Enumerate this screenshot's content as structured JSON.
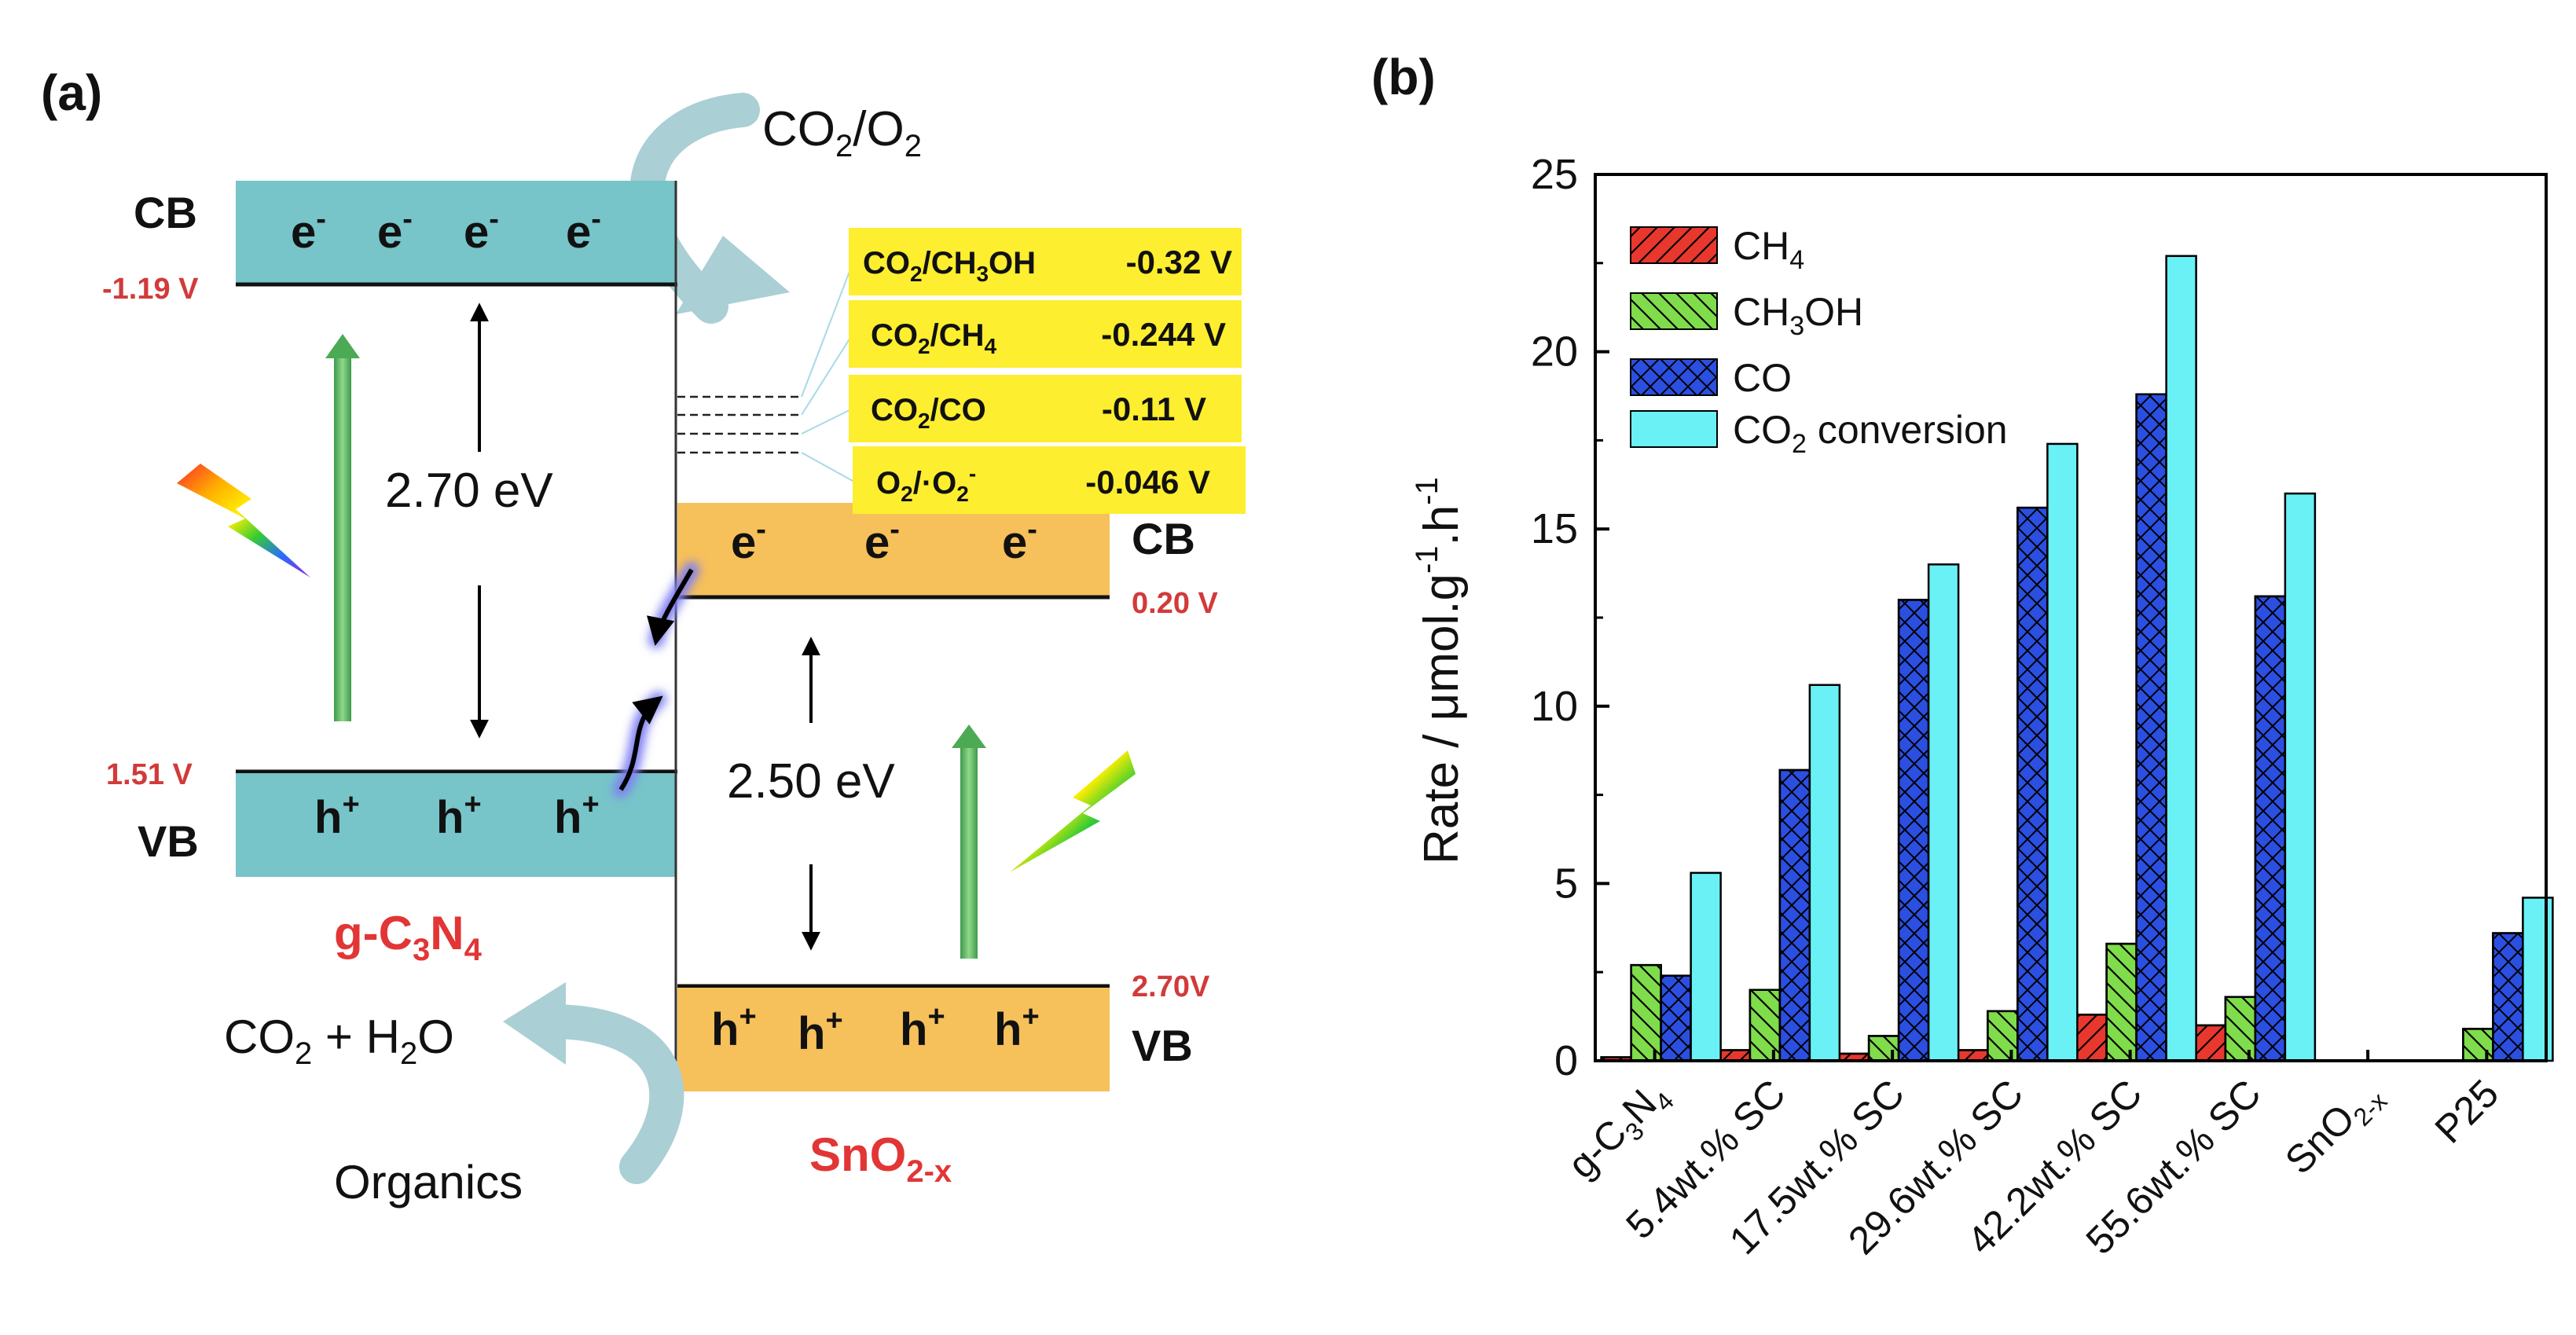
{
  "panel_a": {
    "label": "(a)",
    "top_gas": {
      "a": "CO",
      "b": "2",
      "c": "/O",
      "d": "2"
    },
    "cb": "CB",
    "vb": "VB",
    "electron": "e",
    "electron_charge": "-",
    "hole": "h",
    "hole_charge": "+",
    "gcn_cb_potential": "-1.19 V",
    "gcn_vb_potential": "1.51 V",
    "gcn_gap": "2.70 eV",
    "sno_cb_potential": "0.20 V",
    "sno_vb_potential": "2.70V",
    "sno_gap": "2.50 eV",
    "gcn_name": {
      "a": "g-C",
      "b": "3",
      "c": "N",
      "d": "4"
    },
    "sno_name": {
      "a": "SnO",
      "b": "2-x"
    },
    "products": {
      "a": "CO",
      "b": "2",
      "c": " + H",
      "d": "2",
      "e": "O"
    },
    "organics": "Organics",
    "redox": [
      {
        "pair": {
          "a": "CO",
          "b": "2",
          "c": "/CH",
          "d": "3",
          "e": "OH"
        },
        "value": "-0.32 V"
      },
      {
        "pair": {
          "a": "CO",
          "b": "2",
          "c": "/CH",
          "d": "4",
          "e": ""
        },
        "value": "-0.244 V"
      },
      {
        "pair": {
          "a": "CO",
          "b": "2",
          "c": "/CO",
          "d": "",
          "e": ""
        },
        "value": "-0.11 V"
      },
      {
        "pair": {
          "a": "O",
          "b": "2",
          "c": "/·O",
          "d": "2",
          "e": "",
          "sup": "-"
        },
        "value": "-0.046 V"
      }
    ],
    "colors": {
      "gcn": "#77c4c9",
      "sno": "#f6c05a",
      "redox": "#fdee2f",
      "arrow": "#5fae5a"
    }
  },
  "panel_b": {
    "label": "(b)",
    "ylabel": {
      "a": "Rate / μmol.g",
      "b": "-1",
      "c": ".h",
      "d": "-1"
    },
    "xtick_labels": [
      {
        "a": "g-C",
        "b": "3",
        "c": "N",
        "d": "4"
      },
      {
        "a": "5.4wt.% SC",
        "b": "",
        "c": "",
        "d": ""
      },
      {
        "a": "17.5wt.% SC",
        "b": "",
        "c": "",
        "d": ""
      },
      {
        "a": "29.6wt.% SC",
        "b": "",
        "c": "",
        "d": ""
      },
      {
        "a": "42.2wt.% SC",
        "b": "",
        "c": "",
        "d": ""
      },
      {
        "a": "55.6wt.% SC",
        "b": "",
        "c": "",
        "d": ""
      },
      {
        "a": "SnO",
        "b": "2-x",
        "c": "",
        "d": ""
      },
      {
        "a": "P25",
        "b": "",
        "c": "",
        "d": ""
      }
    ],
    "legend": [
      {
        "a": "CH",
        "b": "4",
        "c": ""
      },
      {
        "a": "CH",
        "b": "3",
        "c": "OH"
      },
      {
        "a": "CO",
        "b": "",
        "c": ""
      },
      {
        "a": "CO",
        "b": "2",
        "c": " conversion"
      }
    ]
  },
  "chart_data": {
    "type": "bar",
    "categories": [
      "g-C3N4",
      "5.4wt.% SC",
      "17.5wt.% SC",
      "29.6wt.% SC",
      "42.2wt.% SC",
      "55.6wt.% SC",
      "SnO2-x",
      "P25"
    ],
    "series": [
      {
        "name": "CH4",
        "values": [
          0.1,
          0.3,
          0.2,
          0.3,
          1.3,
          1.0,
          0,
          0
        ],
        "color": "#e8382e",
        "pattern": "diag-right"
      },
      {
        "name": "CH3OH",
        "values": [
          2.7,
          2.0,
          0.7,
          1.4,
          3.3,
          1.8,
          0,
          0.9
        ],
        "color": "#7fdc4b",
        "pattern": "diag-left"
      },
      {
        "name": "CO",
        "values": [
          2.4,
          8.2,
          13.0,
          15.6,
          18.8,
          13.1,
          0,
          3.6
        ],
        "color": "#2b4fe0",
        "pattern": "crosshatch"
      },
      {
        "name": "CO2 conversion",
        "values": [
          5.3,
          10.6,
          14.0,
          17.4,
          22.7,
          16.0,
          0,
          4.6
        ],
        "color": "#6af1f6",
        "pattern": "none"
      }
    ],
    "ylim": [
      0,
      25
    ],
    "yticks": [
      0,
      5,
      10,
      15,
      20,
      25
    ],
    "legend_position": "top-left"
  }
}
